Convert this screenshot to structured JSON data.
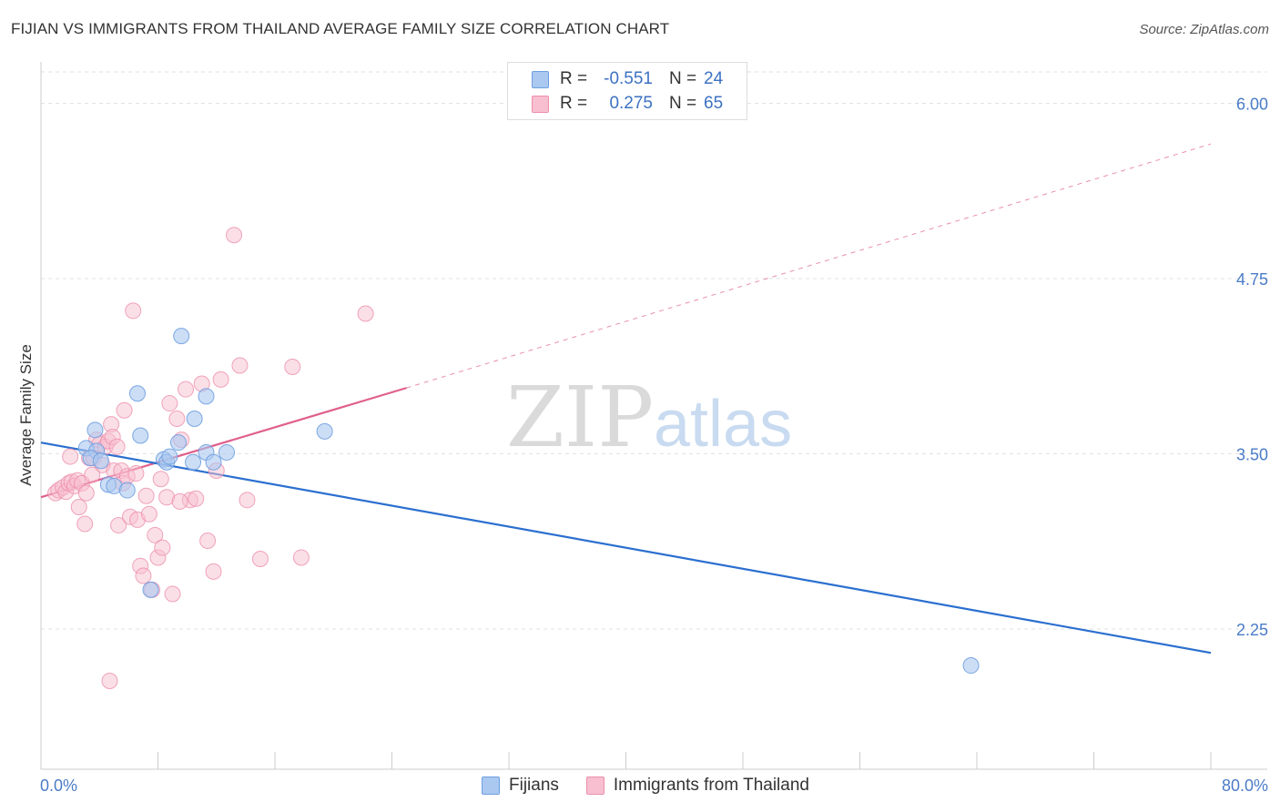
{
  "header": {
    "title": "FIJIAN VS IMMIGRANTS FROM THAILAND AVERAGE FAMILY SIZE CORRELATION CHART",
    "source": "Source: ZipAtlas.com"
  },
  "legend": {
    "rows": [
      {
        "r_label": "R =",
        "r_value": "-0.551",
        "n_label": "N =",
        "n_value": "24"
      },
      {
        "r_label": "R =",
        "r_value": "0.275",
        "n_label": "N =",
        "n_value": "65"
      }
    ],
    "bottom": [
      "Fijians",
      "Immigrants from Thailand"
    ]
  },
  "chart_data": {
    "type": "scatter",
    "ylabel": "Average Family Size",
    "x_range": [
      0,
      80
    ],
    "y_range": [
      1.25,
      6.25
    ],
    "x_tick_labels": [
      "0.0%",
      "80.0%"
    ],
    "y_ticks": [
      2.25,
      3.5,
      4.75,
      6.0
    ],
    "y_tick_labels": [
      "2.25",
      "3.50",
      "4.75",
      "6.00"
    ],
    "grid": "horizontal dashed",
    "watermark": "ZIPatlas",
    "colors": {
      "fijians_fill": "#aac8f0",
      "fijians_stroke": "#6f9fe0",
      "fijians_line": "#2b6fcf",
      "thai_fill": "#f7bfd0",
      "thai_stroke": "#ec8fab",
      "thai_line": "#e0608d"
    },
    "series": [
      {
        "name": "Fijians",
        "points": [
          [
            3.1,
            3.54
          ],
          [
            3.8,
            3.52
          ],
          [
            3.4,
            3.47
          ],
          [
            4.1,
            3.45
          ],
          [
            3.7,
            3.67
          ],
          [
            4.6,
            3.28
          ],
          [
            5.0,
            3.27
          ],
          [
            5.9,
            3.24
          ],
          [
            6.6,
            3.93
          ],
          [
            6.8,
            3.63
          ],
          [
            7.5,
            2.53
          ],
          [
            8.4,
            3.46
          ],
          [
            8.6,
            3.44
          ],
          [
            8.8,
            3.48
          ],
          [
            9.4,
            3.58
          ],
          [
            10.4,
            3.44
          ],
          [
            11.3,
            3.51
          ],
          [
            9.6,
            4.34
          ],
          [
            10.5,
            3.75
          ],
          [
            11.3,
            3.91
          ],
          [
            11.8,
            3.44
          ],
          [
            12.7,
            3.51
          ],
          [
            19.4,
            3.66
          ],
          [
            63.6,
            1.99
          ]
        ],
        "trend": {
          "x0": 0,
          "y0": 3.58,
          "x1": 80,
          "y1": 2.08
        }
      },
      {
        "name": "Immigrants from Thailand",
        "points": [
          [
            1.0,
            3.22
          ],
          [
            1.2,
            3.24
          ],
          [
            1.5,
            3.26
          ],
          [
            1.7,
            3.23
          ],
          [
            1.9,
            3.29
          ],
          [
            2.1,
            3.3
          ],
          [
            2.3,
            3.27
          ],
          [
            2.5,
            3.31
          ],
          [
            2.8,
            3.29
          ],
          [
            3.1,
            3.22
          ],
          [
            3.3,
            3.47
          ],
          [
            3.6,
            3.47
          ],
          [
            3.8,
            3.6
          ],
          [
            4.0,
            3.57
          ],
          [
            4.2,
            3.42
          ],
          [
            4.4,
            3.55
          ],
          [
            4.6,
            3.59
          ],
          [
            4.8,
            3.71
          ],
          [
            4.9,
            3.62
          ],
          [
            5.0,
            3.38
          ],
          [
            5.2,
            3.55
          ],
          [
            5.5,
            3.38
          ],
          [
            5.7,
            3.81
          ],
          [
            3.0,
            3.0
          ],
          [
            5.3,
            2.99
          ],
          [
            5.6,
            3.29
          ],
          [
            5.9,
            3.34
          ],
          [
            6.1,
            3.05
          ],
          [
            6.3,
            4.52
          ],
          [
            6.6,
            3.03
          ],
          [
            6.8,
            2.7
          ],
          [
            7.0,
            2.63
          ],
          [
            7.2,
            3.2
          ],
          [
            7.4,
            3.07
          ],
          [
            7.6,
            2.53
          ],
          [
            7.8,
            2.92
          ],
          [
            8.0,
            2.76
          ],
          [
            8.3,
            2.83
          ],
          [
            8.6,
            3.19
          ],
          [
            8.8,
            3.86
          ],
          [
            9.0,
            2.5
          ],
          [
            9.3,
            3.75
          ],
          [
            9.6,
            3.6
          ],
          [
            9.9,
            3.96
          ],
          [
            10.2,
            3.17
          ],
          [
            10.6,
            3.18
          ],
          [
            11.0,
            4.0
          ],
          [
            11.4,
            2.88
          ],
          [
            11.8,
            2.66
          ],
          [
            12.3,
            4.03
          ],
          [
            13.2,
            5.06
          ],
          [
            13.6,
            4.13
          ],
          [
            14.1,
            3.17
          ],
          [
            15.0,
            2.75
          ],
          [
            17.2,
            4.12
          ],
          [
            17.8,
            2.76
          ],
          [
            22.2,
            4.5
          ],
          [
            4.7,
            1.88
          ],
          [
            2.0,
            3.48
          ],
          [
            3.5,
            3.35
          ],
          [
            6.5,
            3.36
          ],
          [
            9.5,
            3.16
          ],
          [
            12.0,
            3.38
          ],
          [
            2.6,
            3.12
          ],
          [
            8.2,
            3.32
          ]
        ],
        "trend": {
          "x0": 0,
          "y0": 3.19,
          "x1": 25,
          "y1": 3.97
        },
        "trend_extension": {
          "x0": 25,
          "y0": 3.97,
          "x1": 80,
          "y1": 5.71
        }
      }
    ]
  }
}
